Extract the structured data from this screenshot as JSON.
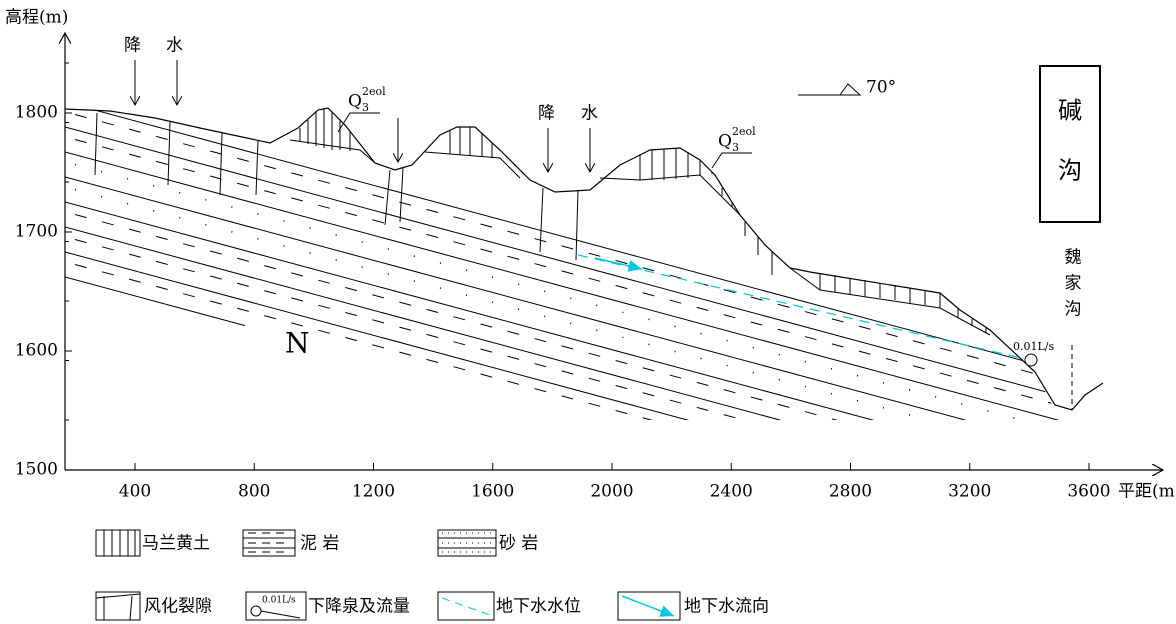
{
  "axes": {
    "y_label": "高程(m)",
    "x_label": "平距(m)",
    "yticks": [
      1500,
      1600,
      1700,
      1800
    ],
    "xticks": [
      400,
      800,
      1200,
      1600,
      2000,
      2400,
      2800,
      3200,
      3600
    ]
  },
  "annotations": {
    "rain": [
      {
        "left": "降",
        "right": "水"
      },
      {
        "left": "降",
        "right": "水"
      }
    ],
    "loess_labels": [
      {
        "base": "Q",
        "sub": "3",
        "sup": "2eol"
      },
      {
        "base": "Q",
        "sub": "3",
        "sup": "2eol"
      }
    ],
    "dip": "70°",
    "box": [
      "碱",
      "沟"
    ],
    "valley": [
      "魏",
      "家",
      "沟"
    ],
    "formation": "N",
    "spring_flow": "0.01L/s"
  },
  "legend": {
    "row1": [
      "马兰黄土",
      "泥 岩",
      "砂 岩"
    ],
    "row2": [
      "风化裂隙",
      "下降泉及流量",
      "地下水水位",
      "地下水流向"
    ],
    "spring_icon_label": "0.01L/s"
  }
}
